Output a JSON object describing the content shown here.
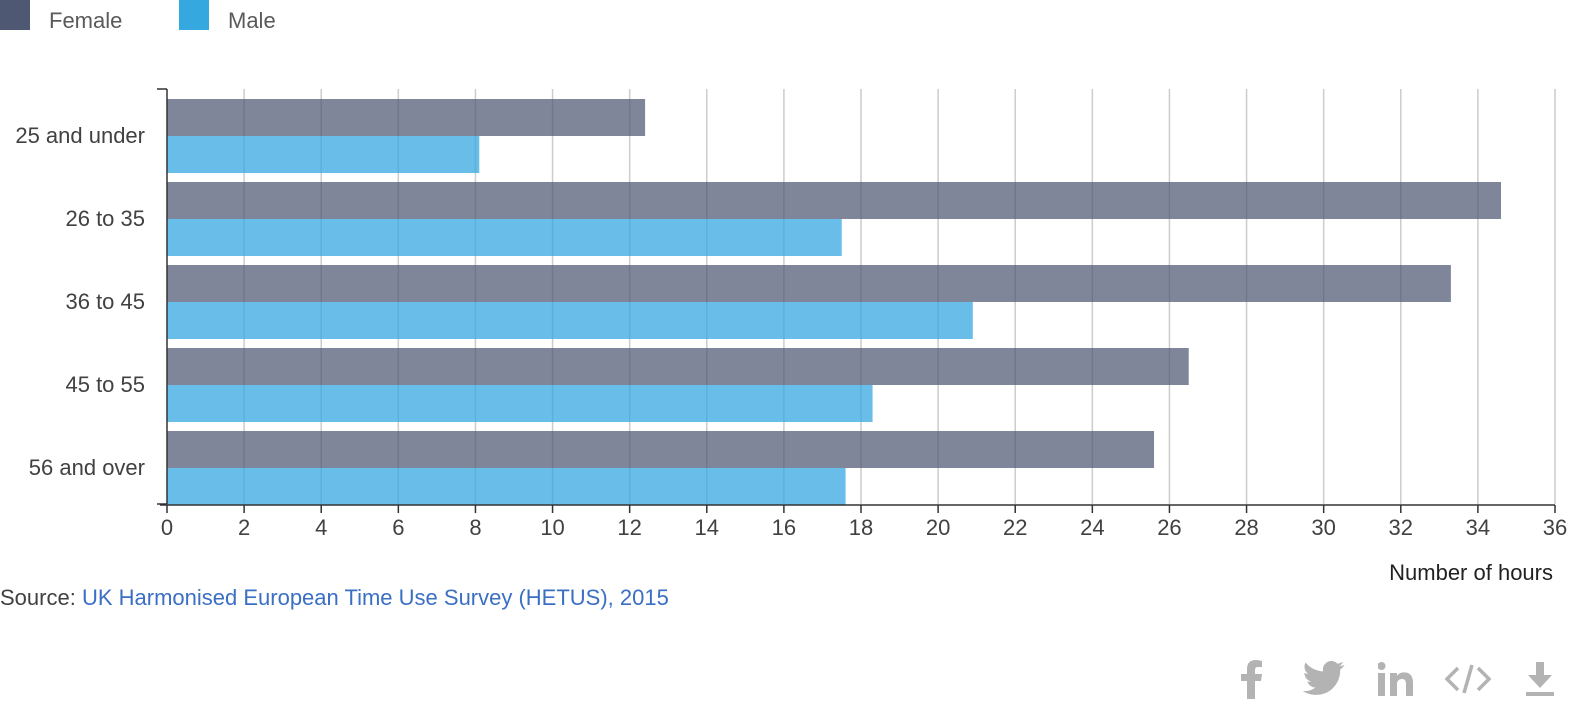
{
  "chart_data": {
    "type": "bar",
    "orientation": "horizontal",
    "categories": [
      "25 and under",
      "26 to 35",
      "36 to 45",
      "45 to 55",
      "56 and over"
    ],
    "series": [
      {
        "name": "Female",
        "color": "#4f5872",
        "values": [
          12.4,
          34.6,
          33.3,
          26.5,
          25.6
        ]
      },
      {
        "name": "Male",
        "color": "#35a8e0",
        "values": [
          8.1,
          17.5,
          20.9,
          18.3,
          17.6
        ]
      }
    ],
    "xlabel": "Number of hours",
    "ylabel": "",
    "xlim": [
      0,
      36
    ],
    "xticks": [
      "0",
      "2",
      "4",
      "6",
      "8",
      "10",
      "12",
      "14",
      "16",
      "18",
      "20",
      "22",
      "24",
      "26",
      "28",
      "30",
      "32",
      "34",
      "36"
    ],
    "grid": "vertical",
    "legend": "top-left"
  },
  "source": {
    "prefix": "Source:",
    "link_text": "UK Harmonised European Time Use Survey (HETUS), 2015"
  },
  "share_icons": [
    "facebook-icon",
    "twitter-icon",
    "linkedin-icon",
    "embed-code-icon",
    "download-icon"
  ]
}
